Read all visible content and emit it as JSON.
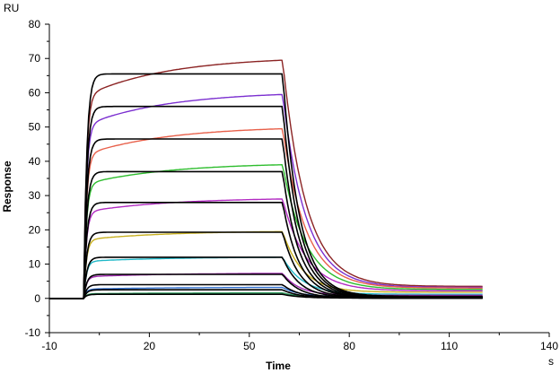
{
  "chart_data": {
    "type": "line",
    "xlabel": "Time",
    "ylabel": "Response",
    "y_unit": "RU",
    "x_unit": "s",
    "xlim": [
      -10,
      140
    ],
    "ylim": [
      -10,
      80
    ],
    "x_ticks": [
      -10,
      20,
      50,
      80,
      110,
      140
    ],
    "y_ticks": [
      -10,
      0,
      10,
      20,
      30,
      40,
      50,
      60,
      70,
      80
    ],
    "grid": false,
    "legend": "none",
    "injection_start": 0.3,
    "injection_end": 60,
    "run_end": 120,
    "series": [
      {
        "color": "#8b2323",
        "kind": "measured",
        "plateau": 65.5,
        "end_assoc": 69.5,
        "drift": 0.18,
        "diss_tau": 7,
        "baseline_end": 3.5
      },
      {
        "color": "#7b2fd0",
        "kind": "measured",
        "plateau": 56.0,
        "end_assoc": 59.5,
        "drift": 0.18,
        "diss_tau": 7,
        "baseline_end": 3.2
      },
      {
        "color": "#e8604a",
        "kind": "measured",
        "plateau": 46.5,
        "end_assoc": 49.5,
        "drift": 0.18,
        "diss_tau": 7,
        "baseline_end": 3.0
      },
      {
        "color": "#2ebd2e",
        "kind": "measured",
        "plateau": 37.0,
        "end_assoc": 39.0,
        "drift": 0.18,
        "diss_tau": 7,
        "baseline_end": 2.6
      },
      {
        "color": "#b22ac2",
        "kind": "measured",
        "plateau": 28.0,
        "end_assoc": 29.0,
        "drift": 0.15,
        "diss_tau": 7,
        "baseline_end": 2.2
      },
      {
        "color": "#c8b020",
        "kind": "measured",
        "plateau": 19.0,
        "end_assoc": 19.5,
        "drift": 0.12,
        "diss_tau": 6,
        "baseline_end": 1.8
      },
      {
        "color": "#20b8c8",
        "kind": "measured",
        "plateau": 12.0,
        "end_assoc": 12.0,
        "drift": 0.1,
        "diss_tau": 6,
        "baseline_end": 1.2
      },
      {
        "color": "#a02ab0",
        "kind": "measured",
        "plateau": 7.0,
        "end_assoc": 7.3,
        "drift": 0.08,
        "diss_tau": 5,
        "baseline_end": 0.9
      },
      {
        "color": "#3070d0",
        "kind": "measured",
        "plateau": 3.0,
        "end_assoc": 3.2,
        "drift": 0.05,
        "diss_tau": 5,
        "baseline_end": 0.5
      },
      {
        "color": "#2a9a5a",
        "kind": "measured",
        "plateau": 1.5,
        "end_assoc": 1.6,
        "drift": 0.05,
        "diss_tau": 5,
        "baseline_end": 0.3
      },
      {
        "color": "#000000",
        "kind": "fit",
        "plateau": 65.5,
        "end_assoc": 65.5,
        "diss_tau": 5,
        "baseline_end": 0.6
      },
      {
        "color": "#000000",
        "kind": "fit",
        "plateau": 56.0,
        "end_assoc": 56.0,
        "diss_tau": 5,
        "baseline_end": 0.5
      },
      {
        "color": "#000000",
        "kind": "fit",
        "plateau": 46.5,
        "end_assoc": 46.5,
        "diss_tau": 5,
        "baseline_end": 0.4
      },
      {
        "color": "#000000",
        "kind": "fit",
        "plateau": 37.0,
        "end_assoc": 37.0,
        "diss_tau": 5,
        "baseline_end": 0.3
      },
      {
        "color": "#000000",
        "kind": "fit",
        "plateau": 28.0,
        "end_assoc": 28.0,
        "diss_tau": 5,
        "baseline_end": 0.3
      },
      {
        "color": "#000000",
        "kind": "fit",
        "plateau": 19.3,
        "end_assoc": 19.3,
        "diss_tau": 5,
        "baseline_end": 0.2
      },
      {
        "color": "#000000",
        "kind": "fit",
        "plateau": 12.0,
        "end_assoc": 12.0,
        "diss_tau": 5,
        "baseline_end": 0.2
      },
      {
        "color": "#000000",
        "kind": "fit",
        "plateau": 7.0,
        "end_assoc": 7.0,
        "diss_tau": 5,
        "baseline_end": 0.1
      },
      {
        "color": "#000000",
        "kind": "fit",
        "plateau": 4.0,
        "end_assoc": 4.0,
        "diss_tau": 5,
        "baseline_end": 0.1
      },
      {
        "color": "#000000",
        "kind": "fit",
        "plateau": 2.5,
        "end_assoc": 2.5,
        "diss_tau": 5,
        "baseline_end": 0.1
      },
      {
        "color": "#000000",
        "kind": "fit",
        "plateau": 1.2,
        "end_assoc": 1.2,
        "diss_tau": 5,
        "baseline_end": 0.1
      }
    ]
  }
}
